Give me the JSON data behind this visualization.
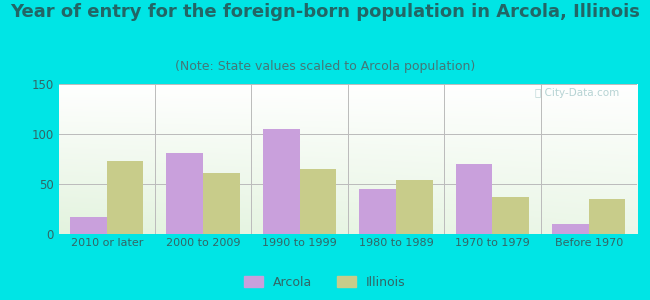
{
  "title": "Year of entry for the foreign-born population in Arcola, Illinois",
  "subtitle": "(Note: State values scaled to Arcola population)",
  "categories": [
    "2010 or later",
    "2000 to 2009",
    "1990 to 1999",
    "1980 to 1989",
    "1970 to 1979",
    "Before 1970"
  ],
  "arcola_values": [
    17,
    81,
    105,
    45,
    70,
    10
  ],
  "illinois_values": [
    73,
    61,
    65,
    54,
    37,
    35
  ],
  "arcola_color": "#c9a0dc",
  "illinois_color": "#c8cc8a",
  "background_outer": "#00e5e5",
  "title_color": "#226666",
  "subtitle_color": "#447777",
  "tick_color": "#336666",
  "ylim": [
    0,
    150
  ],
  "yticks": [
    0,
    50,
    100,
    150
  ],
  "bar_width": 0.38,
  "title_fontsize": 13,
  "subtitle_fontsize": 9,
  "legend_labels": [
    "Arcola",
    "Illinois"
  ]
}
